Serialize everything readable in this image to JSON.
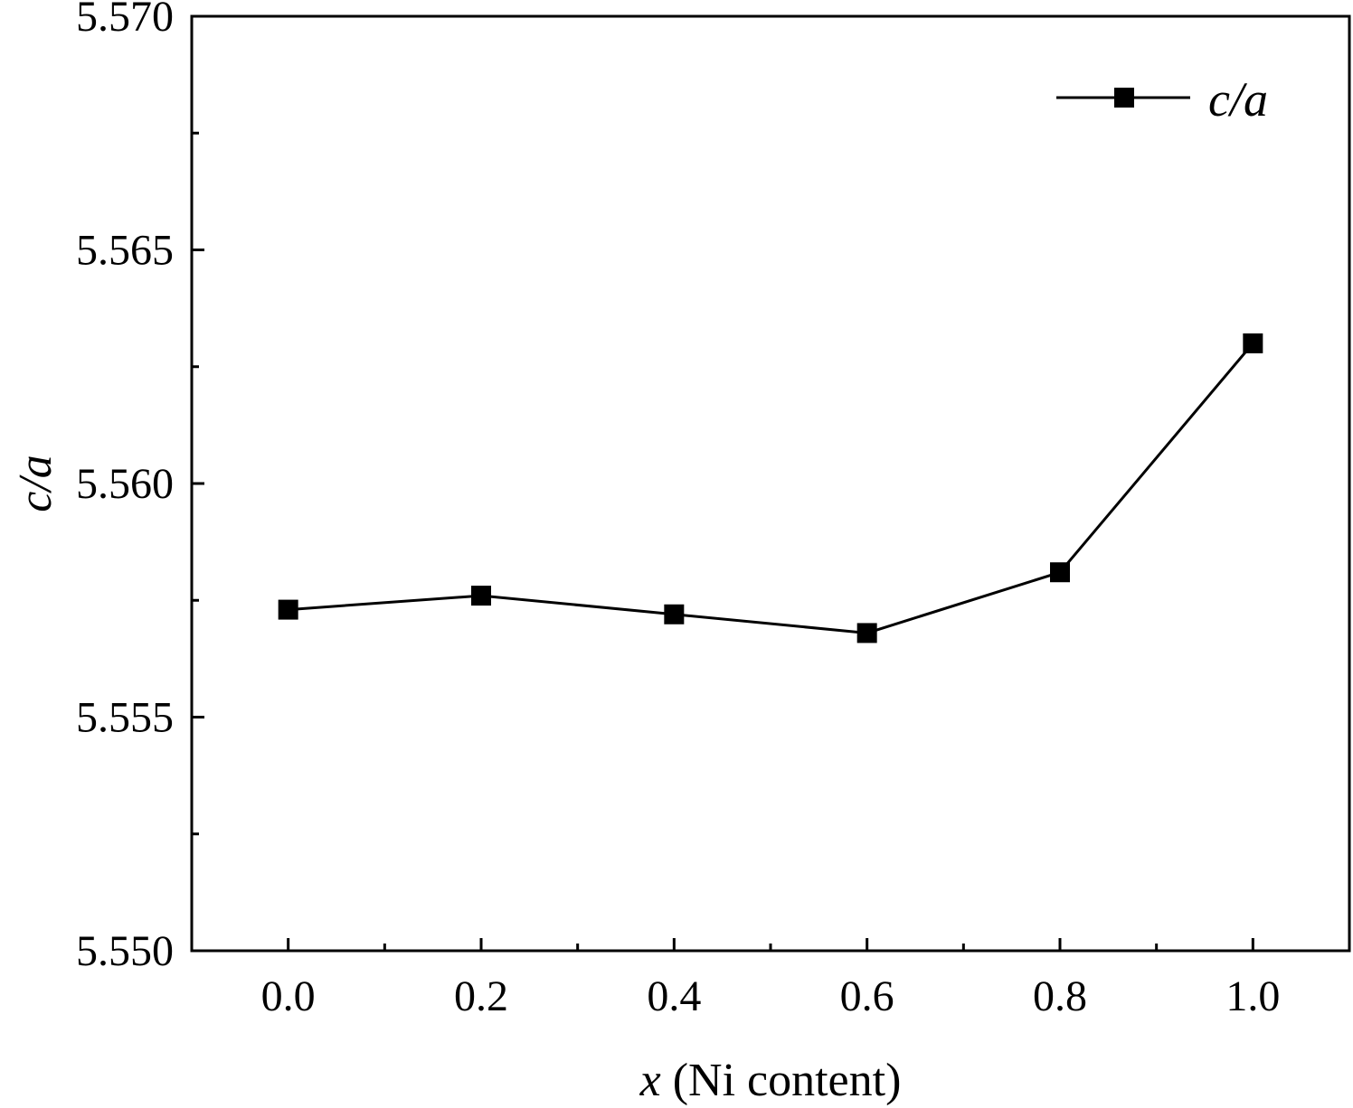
{
  "chart_data": {
    "type": "line",
    "title": "",
    "xlabel_var": "x",
    "xlabel_rest": " (Ni content)",
    "ylabel": "c/a",
    "xlim": [
      -0.1,
      1.1
    ],
    "ylim": [
      5.55,
      5.57
    ],
    "x_ticks": [
      0.0,
      0.2,
      0.4,
      0.6,
      0.8,
      1.0
    ],
    "x_tick_labels": [
      "0.0",
      "0.2",
      "0.4",
      "0.6",
      "0.8",
      "1.0"
    ],
    "x_minor_ticks": [
      0.1,
      0.3,
      0.5,
      0.7,
      0.9
    ],
    "y_ticks": [
      5.55,
      5.555,
      5.56,
      5.565,
      5.57
    ],
    "y_tick_labels": [
      "5.550",
      "5.555",
      "5.560",
      "5.565",
      "5.570"
    ],
    "y_minor_ticks": [
      5.5525,
      5.5575,
      5.5625,
      5.5675
    ],
    "grid": false,
    "legend_position": "top-right",
    "series": [
      {
        "name": "c/a",
        "color": "#000000",
        "marker": "square",
        "x": [
          0.0,
          0.2,
          0.4,
          0.6,
          0.8,
          1.0
        ],
        "y": [
          5.5573,
          5.5576,
          5.5572,
          5.5568,
          5.5581,
          5.563
        ]
      }
    ]
  }
}
